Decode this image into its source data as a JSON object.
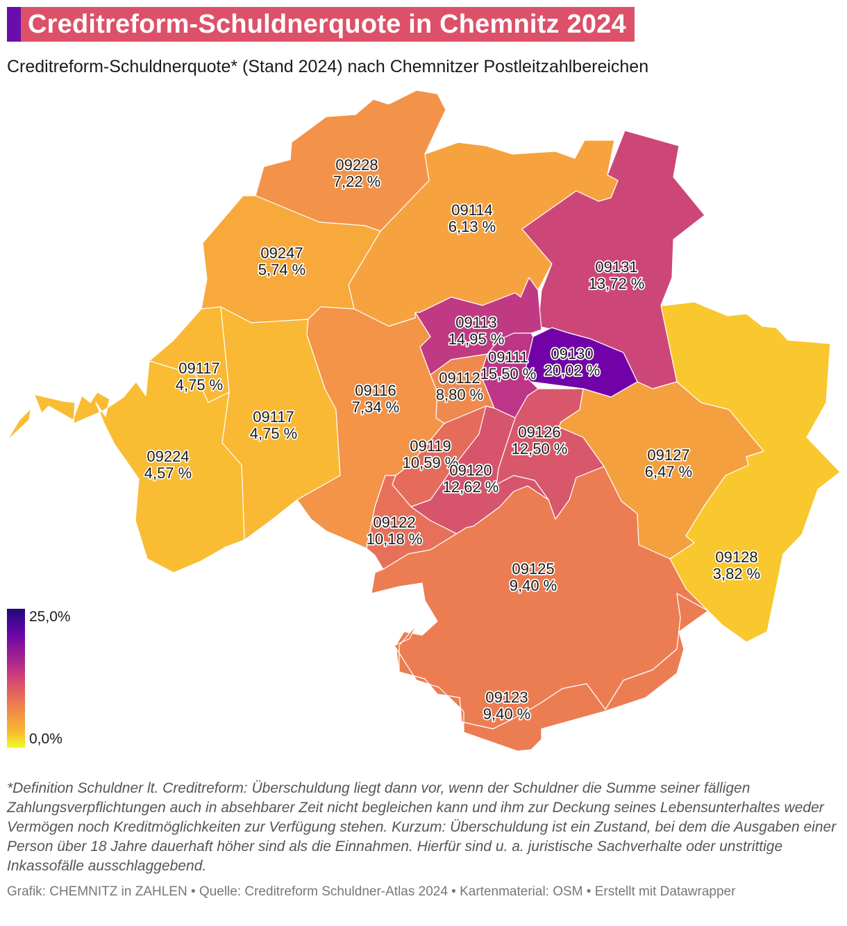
{
  "header": {
    "title": "Creditreform-Schuldnerquote in Chemnitz 2024",
    "subtitle": "Creditreform-Schuldnerquote* (Stand 2024) nach Chemnitzer Postleitzahlbereichen",
    "accent_color": "#6a0dad",
    "title_bg_color": "#dc5169"
  },
  "map": {
    "regions": [
      {
        "plz": "09228",
        "value_label": "7,22 %",
        "value": 7.22,
        "color": "#f3934a"
      },
      {
        "plz": "09114",
        "value_label": "6,13 %",
        "value": 6.13,
        "color": "#f6a33f"
      },
      {
        "plz": "09247",
        "value_label": "5,74 %",
        "value": 5.74,
        "color": "#f7a93b"
      },
      {
        "plz": "09131",
        "value_label": "13,72 %",
        "value": 13.72,
        "color": "#cc4778"
      },
      {
        "plz": "09113",
        "value_label": "14,95 %",
        "value": 14.95,
        "color": "#c03a83"
      },
      {
        "plz": "09117",
        "value_label": "4,75 %",
        "value": 4.75,
        "color": "#f9b934"
      },
      {
        "plz": "09116",
        "value_label": "7,34 %",
        "value": 7.34,
        "color": "#f39449"
      },
      {
        "plz": "09112",
        "value_label": "8,80 %",
        "value": 8.8,
        "color": "#ef8a4f"
      },
      {
        "plz": "09111",
        "value_label": "15,50 %",
        "value": 15.5,
        "color": "#bc3587"
      },
      {
        "plz": "09130",
        "value_label": "20,02 %",
        "value": 20.02,
        "color": "#7201a8"
      },
      {
        "plz": "09224",
        "value_label": "4,57 %",
        "value": 4.57,
        "color": "#f9bc33"
      },
      {
        "plz": "09119",
        "value_label": "10,59 %",
        "value": 10.59,
        "color": "#e56c5b"
      },
      {
        "plz": "09126",
        "value_label": "12,50 %",
        "value": 12.5,
        "color": "#d8576b"
      },
      {
        "plz": "09120",
        "value_label": "12,62 %",
        "value": 12.62,
        "color": "#d6556d"
      },
      {
        "plz": "09127",
        "value_label": "6,47 %",
        "value": 6.47,
        "color": "#f5a03f"
      },
      {
        "plz": "09122",
        "value_label": "10,18 %",
        "value": 10.18,
        "color": "#e7705a"
      },
      {
        "plz": "09125",
        "value_label": "9,40 %",
        "value": 9.4,
        "color": "#ec7d53"
      },
      {
        "plz": "09128",
        "value_label": "3,82 %",
        "value": 3.82,
        "color": "#f9c72e"
      },
      {
        "plz": "09123",
        "value_label": "9,40 %",
        "value": 9.4,
        "color": "#ec7d53"
      }
    ]
  },
  "legend": {
    "max_label": "25,0%",
    "min_label": "0,0%",
    "scale": "plasma"
  },
  "footnote": "*Definition Schuldner lt. Creditreform: Überschuldung liegt dann vor, wenn der Schuldner die Summe seiner fälligen Zahlungsverpflichtungen auch in absehbarer Zeit nicht begleichen kann und ihm zur Deckung seines Lebensunterhaltes weder Vermögen noch Kreditmöglichkeiten zur Verfügung stehen. Kurzum: Überschuldung ist ein Zustand, bei dem die Ausgaben einer Person über 18 Jahre dauerhaft höher sind als die Einnahmen. Hierfür sind u. a. juristische Sachverhalte oder unstrittige Inkassofälle ausschlaggebend.",
  "credits": "Grafik: CHEMNITZ in ZAHLEN • Quelle: Creditreform Schuldner-Atlas 2024  • Kartenmaterial: OSM  • Erstellt mit Datawrapper"
}
